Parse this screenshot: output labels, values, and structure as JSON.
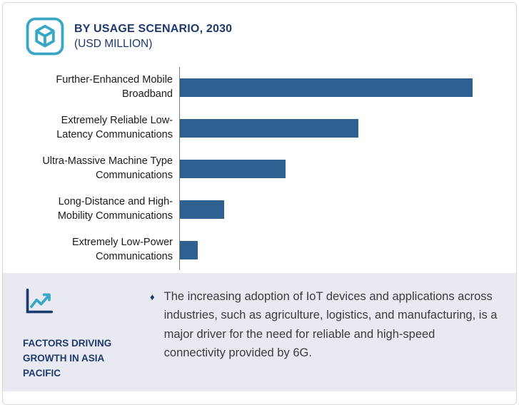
{
  "header": {
    "title": "BY USAGE SCENARIO, 2030",
    "subtitle": "(USD MILLION)"
  },
  "chart_data": {
    "type": "bar",
    "orientation": "horizontal",
    "title": "BY USAGE SCENARIO, 2030 (USD MILLION)",
    "categories": [
      "Further-Enhanced Mobile Broadband",
      "Extremely Reliable Low-Latency Communications",
      "Ultra-Massive Machine Type Communications",
      "Long-Distance and High-Mobility Communications",
      "Extremely Low-Power Communications"
    ],
    "label_lines": [
      [
        "Further-Enhanced Mobile",
        "Broadband"
      ],
      [
        "Extremely Reliable Low-",
        "Latency Communications"
      ],
      [
        "Ultra-Massive Machine Type",
        "Communications"
      ],
      [
        "Long-Distance and High-",
        "Mobility Communications"
      ],
      [
        "Extremely Low-Power",
        "Communications"
      ]
    ],
    "values": [
      100,
      61,
      36,
      15,
      6
    ],
    "value_note": "relative bar lengths; no axis tick values shown in chart",
    "bar_color": "#2e618f",
    "axis_line_visible": true,
    "grid": false,
    "legend": false
  },
  "factors": {
    "heading": "FACTORS DRIVING GROWTH IN ASIA PACIFIC",
    "bullet_glyph": "♦",
    "bullet": "The increasing adoption of IoT devices and applications across industries, such as agriculture, logistics, and manufacturing, is a major driver for the need for reliable and high-speed connectivity provided by 6G."
  },
  "icons": {
    "header_icon": "hexagon-cube-icon",
    "factors_icon": "line-chart-icon",
    "bullet_icon": "diamond-bullet-icon"
  },
  "colors": {
    "navy": "#1e3a6d",
    "teal": "#38a6c5",
    "bar_blue": "#2e618f",
    "panel_bg": "#e9e9f1",
    "card_border": "#d8d8d8",
    "body_text": "#3c3c3c"
  }
}
